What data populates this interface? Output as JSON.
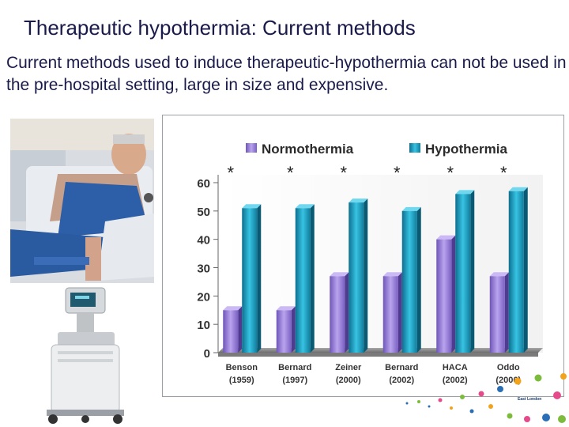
{
  "slide": {
    "title": "Therapeutic hypothermia: Current methods",
    "body": "Current methods used to induce therapeutic-hypothermia can not be used in the pre-hospital setting, large in size and expensive."
  },
  "logo": {
    "text": "East London"
  },
  "colors": {
    "normothermia": "#9b7fd6",
    "hypothermia": "#1fa3c4",
    "floor": "#8a8a8a"
  },
  "chart_data": {
    "type": "bar",
    "title": "",
    "xlabel": "",
    "ylabel": "",
    "ylim": [
      0,
      60
    ],
    "yticks": [
      "0",
      "10",
      "20",
      "30",
      "40",
      "50",
      "60"
    ],
    "legend_position": "top",
    "grid": false,
    "categories": [
      {
        "name": "Benson",
        "year": "(1959)"
      },
      {
        "name": "Bernard",
        "year": "(1997)"
      },
      {
        "name": "Zeiner",
        "year": "(2000)"
      },
      {
        "name": "Bernard",
        "year": "(2002)"
      },
      {
        "name": "HACA",
        "year": "(2002)"
      },
      {
        "name": "Oddo",
        "year": "(2006)"
      }
    ],
    "series": [
      {
        "name": "Normothermia",
        "values": [
          15,
          15,
          27,
          27,
          40,
          27
        ]
      },
      {
        "name": "Hypothermia",
        "values": [
          51,
          51,
          53,
          50,
          56,
          57
        ]
      }
    ],
    "annotations": [
      "*",
      "*",
      "*",
      "*",
      "*",
      "*"
    ]
  }
}
